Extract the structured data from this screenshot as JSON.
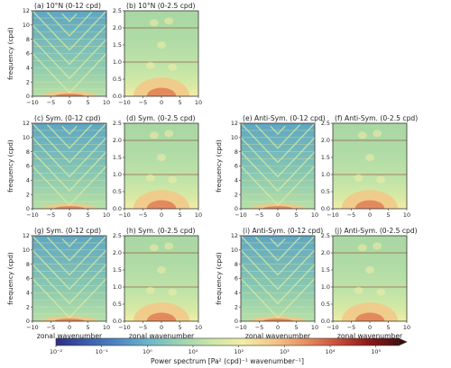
{
  "figure": {
    "colorbar": {
      "label": "Power spectrum [Pa² (cpd)⁻¹ wavenumber⁻¹]",
      "ticks": [
        "10⁻²",
        "10⁻¹",
        "10⁰",
        "10¹",
        "10²",
        "10³",
        "10⁴",
        "10⁵"
      ],
      "min_exp": -2,
      "max_exp": 5.5,
      "scale": "log",
      "colors": [
        "#2b2f85",
        "#3d5ea8",
        "#4f88c4",
        "#6db8c8",
        "#9ed3b2",
        "#cde6a6",
        "#f2eda6",
        "#f3c787",
        "#e79060",
        "#c9503a",
        "#8c1a1a",
        "#4a0f0f"
      ]
    },
    "xlabel": "zonal wavenumber",
    "ylabel": "frequency (cpd)"
  },
  "chart_data": [
    {
      "id": "a",
      "type": "heatmap",
      "title": "(a) 10°N (0-12 cpd)",
      "xlim": [
        -10,
        10
      ],
      "ylim": [
        0,
        12
      ],
      "xticks": [
        "−10",
        "−5",
        "0",
        "5",
        "10"
      ],
      "yticks": [
        "0",
        "2",
        "4",
        "6",
        "8",
        "10",
        "12"
      ]
    },
    {
      "id": "b",
      "type": "heatmap",
      "title": "(b) 10°N (0-2.5 cpd)",
      "xlim": [
        -10,
        10
      ],
      "ylim": [
        0,
        2.5
      ],
      "xticks": [
        "−10",
        "−5",
        "0",
        "5",
        "10"
      ],
      "yticks": [
        "0.0",
        "0.5",
        "1.0",
        "1.5",
        "2.0",
        "2.5"
      ]
    },
    {
      "id": "c",
      "type": "heatmap",
      "title": "(c) Sym. (0-12 cpd)",
      "xlim": [
        -10,
        10
      ],
      "ylim": [
        0,
        12
      ],
      "xticks": [
        "−10",
        "−5",
        "0",
        "5",
        "10"
      ],
      "yticks": [
        "0",
        "2",
        "4",
        "6",
        "8",
        "10",
        "12"
      ]
    },
    {
      "id": "d",
      "type": "heatmap",
      "title": "(d) Sym. (0-2.5 cpd)",
      "xlim": [
        -10,
        10
      ],
      "ylim": [
        0,
        2.5
      ],
      "xticks": [
        "−10",
        "−5",
        "0",
        "5",
        "10"
      ],
      "yticks": [
        "0.0",
        "0.5",
        "1.0",
        "1.5",
        "2.0",
        "2.5"
      ]
    },
    {
      "id": "e",
      "type": "heatmap",
      "title": "(e) Anti-Sym. (0-12 cpd)",
      "xlim": [
        -10,
        10
      ],
      "ylim": [
        0,
        12
      ],
      "xticks": [
        "−10",
        "−5",
        "0",
        "5",
        "10"
      ],
      "yticks": [
        "0",
        "2",
        "4",
        "6",
        "8",
        "10",
        "12"
      ]
    },
    {
      "id": "f",
      "type": "heatmap",
      "title": "(f) Anti-Sym. (0-2.5 cpd)",
      "xlim": [
        -10,
        10
      ],
      "ylim": [
        0,
        2.5
      ],
      "xticks": [
        "−10",
        "−5",
        "0",
        "5",
        "10"
      ],
      "yticks": [
        "0.0",
        "0.5",
        "1.0",
        "1.5",
        "2.0",
        "2.5"
      ]
    },
    {
      "id": "g",
      "type": "heatmap",
      "title": "(g) Sym. (0-12 cpd)",
      "xlim": [
        -10,
        10
      ],
      "ylim": [
        0,
        12
      ],
      "xticks": [
        "−10",
        "−5",
        "0",
        "5",
        "10"
      ],
      "yticks": [
        "0",
        "2",
        "4",
        "6",
        "8",
        "10",
        "12"
      ]
    },
    {
      "id": "h",
      "type": "heatmap",
      "title": "(h) Sym. (0-2.5 cpd)",
      "xlim": [
        -10,
        10
      ],
      "ylim": [
        0,
        2.5
      ],
      "xticks": [
        "−10",
        "−5",
        "0",
        "5",
        "10"
      ],
      "yticks": [
        "0.0",
        "0.5",
        "1.0",
        "1.5",
        "2.0",
        "2.5"
      ]
    },
    {
      "id": "i",
      "type": "heatmap",
      "title": "(i) Anti-Sym. (0-12 cpd)",
      "xlim": [
        -10,
        10
      ],
      "ylim": [
        0,
        12
      ],
      "xticks": [
        "−10",
        "−5",
        "0",
        "5",
        "10"
      ],
      "yticks": [
        "0",
        "2",
        "4",
        "6",
        "8",
        "10",
        "12"
      ]
    },
    {
      "id": "j",
      "type": "heatmap",
      "title": "(j) Anti-Sym. (0-2.5 cpd)",
      "xlim": [
        -10,
        10
      ],
      "ylim": [
        0,
        2.5
      ],
      "xticks": [
        "−10",
        "−5",
        "0",
        "5",
        "10"
      ],
      "yticks": [
        "0.0",
        "0.5",
        "1.0",
        "1.5",
        "2.0",
        "2.5"
      ]
    }
  ]
}
